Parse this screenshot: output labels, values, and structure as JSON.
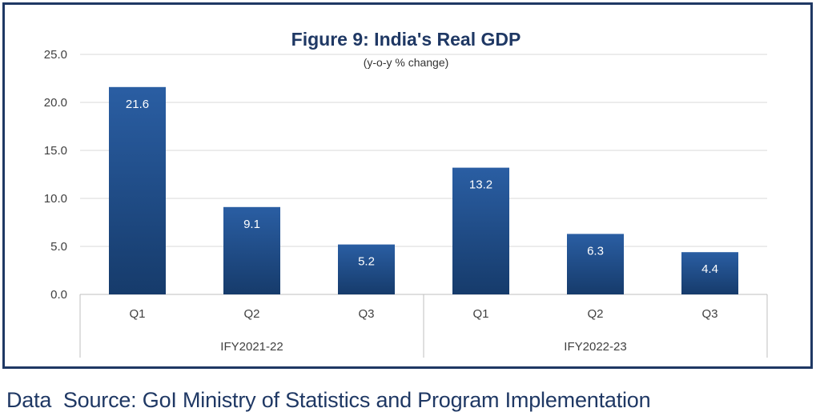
{
  "chart_data": {
    "type": "bar",
    "title": "Figure 9: India's Real GDP",
    "subtitle": "(y-o-y % change)",
    "groups": [
      {
        "label": "IFY2021-22",
        "categories": [
          "Q1",
          "Q2",
          "Q3"
        ],
        "values": [
          21.6,
          9.1,
          5.2
        ]
      },
      {
        "label": "IFY2022-23",
        "categories": [
          "Q1",
          "Q2",
          "Q3"
        ],
        "values": [
          13.2,
          6.3,
          4.4
        ]
      }
    ],
    "data_labels": [
      "21.6",
      "9.1",
      "5.2",
      "13.2",
      "6.3",
      "4.4"
    ],
    "ylim": [
      0,
      25
    ],
    "yticks": [
      "0.0",
      "5.0",
      "10.0",
      "15.0",
      "20.0",
      "25.0"
    ],
    "grid": true,
    "legend": "none",
    "bar_color": "#1f4e8c"
  },
  "source": "Data  Source: GoI Ministry of Statistics and Program Implementation"
}
